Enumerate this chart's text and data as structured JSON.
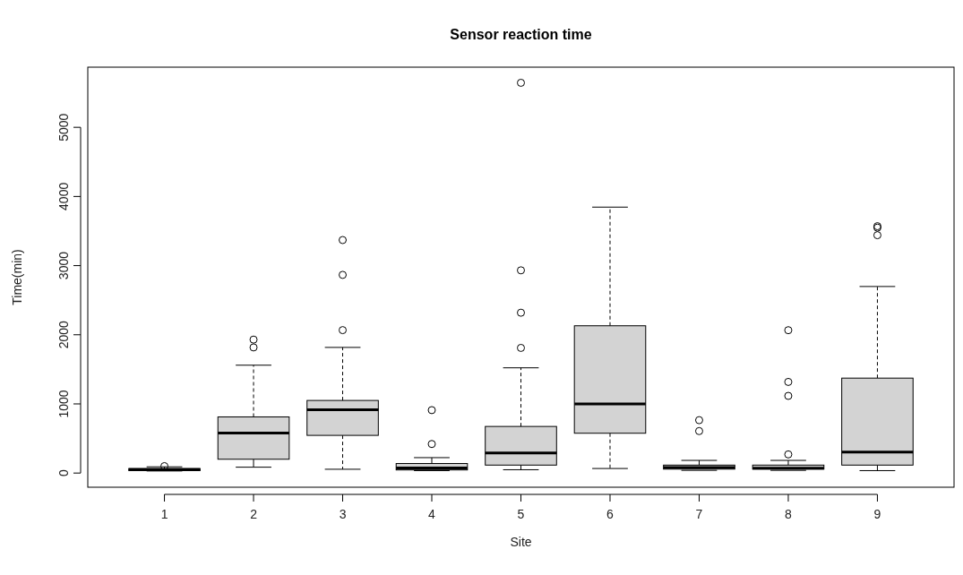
{
  "chart_data": {
    "type": "box",
    "title": "Sensor reaction time",
    "xlabel": "Site",
    "ylabel": "Time(min)",
    "categories": [
      "1",
      "2",
      "3",
      "4",
      "5",
      "6",
      "7",
      "8",
      "9"
    ],
    "color": "#d3d3d3",
    "ylim": [
      -205,
      5870
    ],
    "yticks": [
      0,
      1000,
      2000,
      3000,
      4000,
      5000
    ],
    "grid": false,
    "boxes": [
      {
        "low": 30,
        "q1": 35,
        "median": 50,
        "q3": 65,
        "high": 90,
        "outliers": [
          100
        ]
      },
      {
        "low": 85,
        "q1": 200,
        "median": 580,
        "q3": 812,
        "high": 1560,
        "outliers": [
          1817,
          1930
        ]
      },
      {
        "low": 55,
        "q1": 545,
        "median": 915,
        "q3": 1050,
        "high": 1817,
        "outliers": [
          2067,
          2866,
          3370
        ]
      },
      {
        "low": 35,
        "q1": 45,
        "median": 75,
        "q3": 138,
        "high": 223,
        "outliers": [
          420,
          910
        ]
      },
      {
        "low": 48,
        "q1": 115,
        "median": 292,
        "q3": 674,
        "high": 1522,
        "outliers": [
          1810,
          2319,
          2932,
          5644
        ]
      },
      {
        "low": 66,
        "q1": 576,
        "median": 1000,
        "q3": 2130,
        "high": 3846
      },
      {
        "low": 39,
        "q1": 57,
        "median": 79,
        "q3": 115,
        "high": 183,
        "outliers": [
          607,
          765
        ]
      },
      {
        "low": 39,
        "q1": 57,
        "median": 70,
        "q3": 115,
        "high": 183,
        "outliers": [
          270,
          1116,
          1318,
          2066
        ]
      },
      {
        "low": 35,
        "q1": 115,
        "median": 305,
        "q3": 1373,
        "high": 2698,
        "outliers": [
          3440,
          3549,
          3570
        ]
      }
    ]
  }
}
